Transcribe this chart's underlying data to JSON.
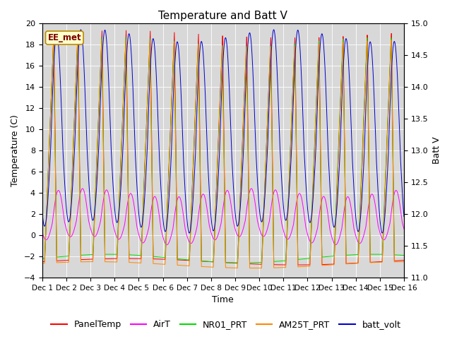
{
  "title": "Temperature and Batt V",
  "xlabel": "Time",
  "ylabel_left": "Temperature (C)",
  "ylabel_right": "Batt V",
  "ylim_left": [
    -4,
    20
  ],
  "ylim_right": [
    11.0,
    15.0
  ],
  "x_tick_labels": [
    "Dec 1",
    "Dec 2",
    "Dec 3",
    "Dec 4",
    "Dec 5",
    "Dec 6",
    "Dec 7",
    "Dec 8",
    "Dec 9",
    "Dec 10",
    "Dec 11",
    "Dec 12",
    "Dec 13",
    "Dec 14",
    "Dec 15",
    "Dec 16"
  ],
  "background_color": "#d8d8d8",
  "title_fontsize": 11,
  "label_fontsize": 9,
  "tick_fontsize": 8,
  "legend_fontsize": 9,
  "ee_met_label": "EE_met",
  "figsize": [
    6.4,
    4.8
  ],
  "dpi": 100,
  "series": [
    {
      "name": "PanelTemp",
      "color": "#ff0000"
    },
    {
      "name": "AirT",
      "color": "#ff00ff"
    },
    {
      "name": "NR01_PRT",
      "color": "#00dd00"
    },
    {
      "name": "AM25T_PRT",
      "color": "#ff8800"
    },
    {
      "name": "batt_volt",
      "color": "#0000cc"
    }
  ]
}
